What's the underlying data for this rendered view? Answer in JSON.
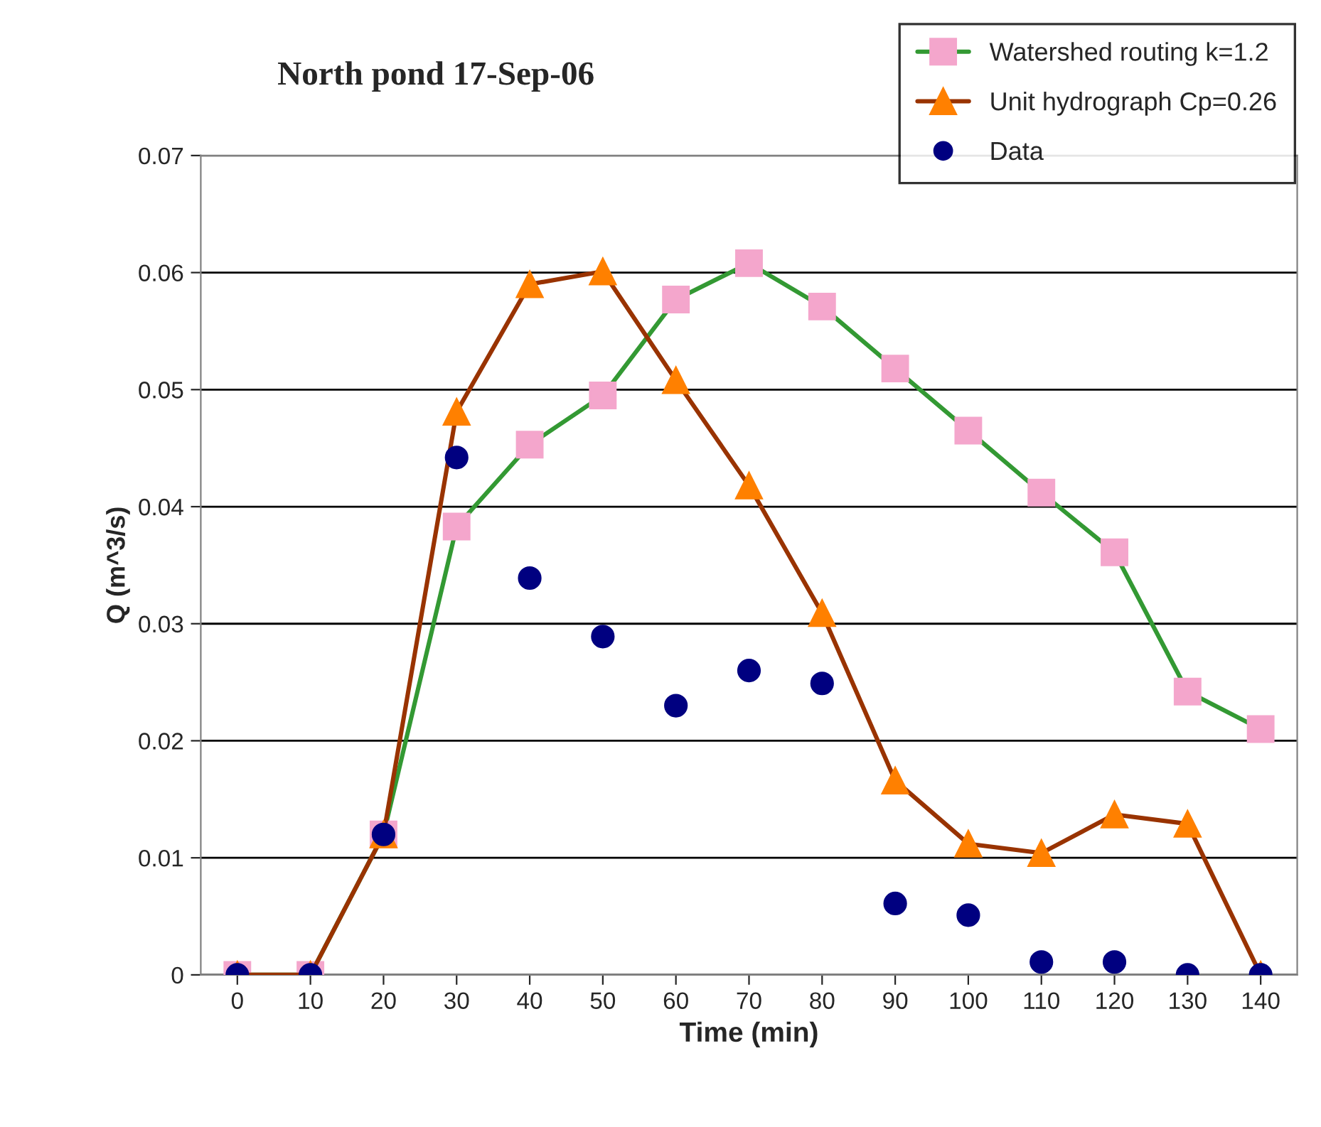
{
  "chart_data": {
    "type": "line",
    "title": "North pond 17-Sep-06",
    "xlabel": "Time (min)",
    "ylabel": "Q (m^3/s)",
    "categories": [
      "0",
      "10",
      "20",
      "30",
      "40",
      "50",
      "60",
      "70",
      "80",
      "90",
      "100",
      "110",
      "120",
      "130",
      "140"
    ],
    "series": [
      {
        "name": "Watershed routing k=1.2",
        "marker": "square",
        "color": "#339933",
        "values": [
          0,
          0,
          0.012,
          0.0383,
          0.0453,
          0.0495,
          0.0577,
          0.0608,
          0.0571,
          0.0518,
          0.0465,
          0.0412,
          0.0361,
          0.0242,
          0.021
        ]
      },
      {
        "name": "Unit hydrograph Cp=0.26",
        "marker": "triangle",
        "color": "#993300",
        "values": [
          0,
          0,
          0.012,
          0.0481,
          0.059,
          0.0601,
          0.0508,
          0.0418,
          0.0309,
          0.0166,
          0.0112,
          0.0104,
          0.0137,
          0.0129,
          0
        ]
      },
      {
        "name": "Data",
        "type": "scatter",
        "marker": "circle",
        "color": "#000080",
        "values": [
          0,
          0,
          0.012,
          0.0442,
          0.0339,
          0.0289,
          0.023,
          0.026,
          0.0249,
          0.0061,
          0.0051,
          0.0011,
          0.0011,
          0,
          0
        ]
      }
    ],
    "ylim": [
      0,
      0.07
    ],
    "yticks": [
      {
        "value": 0,
        "label": "0"
      },
      0.01,
      0.02,
      0.03,
      0.04,
      0.05,
      0.06,
      0.07
    ],
    "grid": "y",
    "legend": "top right"
  }
}
